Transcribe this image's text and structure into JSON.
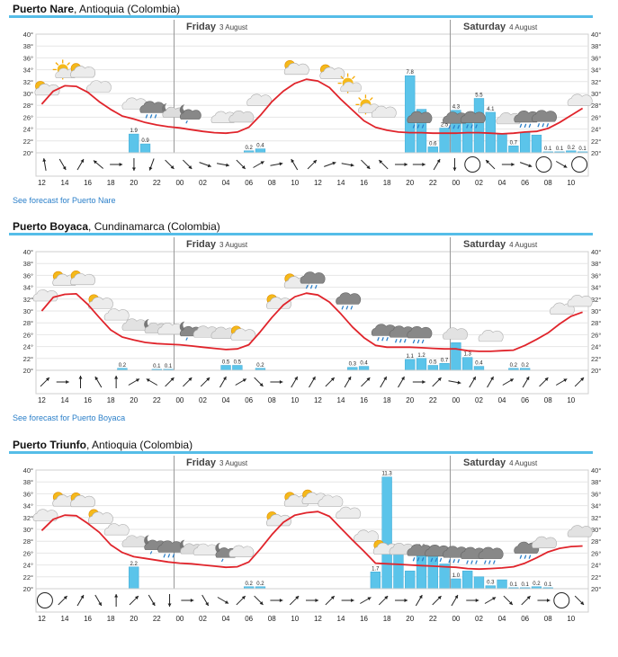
{
  "panels": [
    {
      "title": "Puerto Nare",
      "region": ", Antioquia (Colombia)",
      "day1": "Friday",
      "day1_date": "3 August",
      "day2": "Saturday",
      "day2_date": "4 August",
      "link": "See forecast for Puerto Nare",
      "has_link": true
    },
    {
      "title": "Puerto Boyaca",
      "region": ", Cundinamarca (Colombia)",
      "day1": "Friday",
      "day1_date": "3 August",
      "day2": "Saturday",
      "day2_date": "4 August",
      "link": "See forecast for Puerto Boyaca",
      "has_link": true
    },
    {
      "title": "Puerto Triunfo",
      "region": ", Antioquia (Colombia)",
      "day1": "Friday",
      "day1_date": "3 August",
      "day2": "Saturday",
      "day2_date": "4 August",
      "link": "",
      "has_link": false
    }
  ],
  "colors": {
    "temp_line": "#e0242b",
    "rain_bar": "#5bc4ea",
    "header_rule": "#55bde8"
  },
  "chart_data": [
    {
      "type": "line",
      "x": [
        "12",
        "13",
        "14",
        "15",
        "16",
        "17",
        "18",
        "19",
        "20",
        "21",
        "22",
        "23",
        "00",
        "01",
        "02",
        "03",
        "04",
        "05",
        "06",
        "07",
        "08",
        "09",
        "10",
        "11",
        "12",
        "13",
        "14",
        "15",
        "16",
        "17",
        "18",
        "19",
        "20",
        "21",
        "22",
        "23",
        "00",
        "01",
        "02",
        "03",
        "04",
        "05",
        "06",
        "07",
        "08",
        "09",
        "10",
        "11"
      ],
      "tick_labels": [
        "12",
        "14",
        "16",
        "18",
        "20",
        "22",
        "00",
        "02",
        "04",
        "06",
        "08",
        "10",
        "12",
        "14",
        "16",
        "18",
        "20",
        "22",
        "00",
        "02",
        "04",
        "06",
        "08",
        "10"
      ],
      "ylim": [
        20,
        40
      ],
      "yticks": [
        "20°",
        "22°",
        "24°",
        "26°",
        "28°",
        "30°",
        "32°",
        "34°",
        "36°",
        "38°",
        "40°"
      ],
      "temperature": [
        28.2,
        30.4,
        31.3,
        31.2,
        30.2,
        28.6,
        27.3,
        26.2,
        25.7,
        25.1,
        24.7,
        24.4,
        24.2,
        23.9,
        23.6,
        23.4,
        23.3,
        23.5,
        24.3,
        26.3,
        28.6,
        30.4,
        31.7,
        32.4,
        32.1,
        31,
        29,
        27.2,
        25.4,
        24.3,
        23.8,
        23.5,
        23.4,
        23.4,
        23.3,
        23.3,
        23.3,
        23.4,
        23.4,
        23.3,
        23.2,
        23.3,
        23.5,
        23.6,
        24.1,
        25.1,
        26.3,
        27.5
      ],
      "precip_ylim": [
        0,
        12
      ],
      "precipitation": [
        0,
        0,
        0,
        0,
        0,
        0,
        0,
        0,
        1.9,
        0.9,
        0,
        0,
        0,
        0,
        0,
        0,
        0,
        0,
        0.2,
        0.4,
        0,
        0,
        0,
        0,
        0,
        0,
        0,
        0,
        0,
        0,
        0,
        0,
        7.8,
        4.4,
        0.6,
        2.5,
        4.3,
        3.2,
        5.5,
        4.1,
        1.9,
        0.7,
        2.1,
        1.8,
        0.1,
        0.1,
        0.2,
        0.1
      ],
      "precip_labels": [
        null,
        null,
        null,
        null,
        null,
        null,
        null,
        null,
        "1.9",
        "0.9",
        null,
        null,
        null,
        null,
        null,
        null,
        null,
        null,
        "0.2",
        "0.4",
        null,
        null,
        null,
        null,
        null,
        null,
        null,
        null,
        null,
        null,
        null,
        null,
        "7.8",
        null,
        "0.6",
        "2.5",
        "4.3",
        null,
        "5.5",
        "4.1",
        null,
        "0.7",
        null,
        null,
        "0.1",
        "0.1",
        "0.2",
        "0.1"
      ],
      "icons": [
        "psun",
        "sun",
        "psun",
        "cloud",
        "",
        "cloud",
        "cloudrain",
        "moon",
        "pmoon",
        "",
        "cloud",
        "pcloud",
        "cloud",
        "",
        "psun",
        "",
        "psun",
        "sun",
        "sun",
        "cloud",
        "",
        "cloudrain",
        "",
        "cloudrain",
        "cloudrain",
        "",
        "pcloud",
        "cloudrain",
        "cloudrain",
        "",
        "cloud"
      ],
      "wind": [
        260,
        60,
        300,
        220,
        0,
        90,
        110,
        45,
        45,
        20,
        10,
        45,
        330,
        350,
        240,
        315,
        340,
        10,
        45,
        225,
        0,
        0,
        300,
        90,
        0,
        225,
        0,
        20,
        0,
        30,
        0
      ],
      "wind_calm": [
        false,
        false,
        false,
        false,
        false,
        false,
        false,
        false,
        false,
        false,
        false,
        false,
        false,
        false,
        false,
        false,
        false,
        false,
        false,
        false,
        false,
        false,
        false,
        false,
        true,
        false,
        false,
        false,
        true,
        false,
        true
      ]
    },
    {
      "type": "line",
      "x": [
        "12",
        "13",
        "14",
        "15",
        "16",
        "17",
        "18",
        "19",
        "20",
        "21",
        "22",
        "23",
        "00",
        "01",
        "02",
        "03",
        "04",
        "05",
        "06",
        "07",
        "08",
        "09",
        "10",
        "11",
        "12",
        "13",
        "14",
        "15",
        "16",
        "17",
        "18",
        "19",
        "20",
        "21",
        "22",
        "23",
        "00",
        "01",
        "02",
        "03",
        "04",
        "05",
        "06",
        "07",
        "08",
        "09",
        "10",
        "11"
      ],
      "tick_labels": [
        "12",
        "14",
        "16",
        "18",
        "20",
        "22",
        "00",
        "02",
        "04",
        "06",
        "08",
        "10",
        "12",
        "14",
        "16",
        "18",
        "20",
        "22",
        "00",
        "02",
        "04",
        "06",
        "08",
        "10"
      ],
      "ylim": [
        20,
        40
      ],
      "yticks": [
        "20°",
        "22°",
        "24°",
        "26°",
        "28°",
        "30°",
        "32°",
        "34°",
        "36°",
        "38°",
        "40°"
      ],
      "temperature": [
        30,
        32.3,
        32.8,
        32.9,
        31.1,
        28.9,
        26.8,
        25.6,
        25.1,
        24.7,
        24.5,
        24.4,
        24.3,
        24.1,
        23.9,
        23.7,
        23.5,
        23.6,
        24.3,
        26.5,
        28.9,
        31,
        32.4,
        33,
        32.7,
        31.5,
        29.5,
        27.3,
        25.5,
        24.2,
        23.9,
        23.9,
        23.9,
        23.8,
        23.7,
        23.6,
        23.6,
        23.3,
        23.2,
        23.2,
        23.3,
        23.4,
        24.2,
        25.2,
        26.3,
        27.8,
        29.1,
        29.8
      ],
      "precip_ylim": [
        0,
        12
      ],
      "precipitation": [
        0,
        0,
        0,
        0,
        0,
        0,
        0,
        0.2,
        0,
        0,
        0.1,
        0.1,
        0,
        0,
        0,
        0,
        0.5,
        0.5,
        0,
        0.2,
        0,
        0,
        0,
        0,
        0,
        0,
        0,
        0.3,
        0.4,
        0,
        0,
        0,
        1.1,
        1.2,
        0.5,
        0.7,
        2.8,
        1.3,
        0.4,
        0,
        0,
        0.2,
        0.2,
        0,
        0,
        0,
        0,
        0
      ],
      "precip_labels": [
        null,
        null,
        null,
        null,
        null,
        null,
        null,
        "0.2",
        null,
        null,
        "0.1",
        "0.1",
        null,
        null,
        null,
        null,
        "0.5",
        "0.5",
        null,
        "0.2",
        null,
        null,
        null,
        null,
        null,
        null,
        null,
        "0.3",
        "0.4",
        null,
        null,
        null,
        "1.1",
        "1.2",
        "0.5",
        "0.7",
        null,
        "1.3",
        "0.4",
        null,
        null,
        "0.2",
        "0.2",
        null,
        null,
        null,
        null,
        null
      ],
      "icons": [
        "cloud",
        "psun",
        "psun",
        "psun",
        "cloud",
        "pcloud",
        "moon",
        "cloud",
        "pmoon",
        "pcloud",
        "pcloud",
        "psun",
        "",
        "psun",
        "psun",
        "cloudrain",
        "",
        "cloudrain",
        "",
        "cloudrain",
        "cloudrain",
        "cloudrain",
        "",
        "pcloud",
        "",
        "cloud",
        "",
        "",
        "",
        "cloud",
        "cloud"
      ],
      "wind": [
        315,
        0,
        270,
        240,
        270,
        330,
        210,
        315,
        315,
        315,
        300,
        330,
        45,
        0,
        300,
        300,
        315,
        300,
        315,
        300,
        300,
        0,
        315,
        10,
        300,
        300,
        330,
        300,
        315,
        330,
        315
      ],
      "wind_calm": [
        false,
        false,
        false,
        false,
        false,
        false,
        false,
        false,
        false,
        false,
        false,
        false,
        false,
        false,
        false,
        false,
        false,
        false,
        false,
        false,
        false,
        false,
        false,
        false,
        false,
        false,
        false,
        false,
        false,
        false,
        false
      ]
    },
    {
      "type": "line",
      "x": [
        "12",
        "13",
        "14",
        "15",
        "16",
        "17",
        "18",
        "19",
        "20",
        "21",
        "22",
        "23",
        "00",
        "01",
        "02",
        "03",
        "04",
        "05",
        "06",
        "07",
        "08",
        "09",
        "10",
        "11",
        "12",
        "13",
        "14",
        "15",
        "16",
        "17",
        "18",
        "19",
        "20",
        "21",
        "22",
        "23",
        "00",
        "01",
        "02",
        "03",
        "04",
        "05",
        "06",
        "07",
        "08",
        "09",
        "10",
        "11"
      ],
      "tick_labels": [
        "12",
        "14",
        "16",
        "18",
        "20",
        "22",
        "00",
        "02",
        "04",
        "06",
        "08",
        "10",
        "12",
        "14",
        "16",
        "18",
        "20",
        "22",
        "00",
        "02",
        "04",
        "06",
        "08",
        "10"
      ],
      "ylim": [
        20,
        40
      ],
      "yticks": [
        "20°",
        "22°",
        "24°",
        "26°",
        "28°",
        "30°",
        "32°",
        "34°",
        "36°",
        "38°",
        "40°"
      ],
      "temperature": [
        29.8,
        31.7,
        32.4,
        32.3,
        31,
        29.5,
        27.4,
        26.1,
        25.4,
        25.1,
        24.8,
        24.5,
        24.3,
        24.2,
        24,
        23.8,
        23.6,
        23.7,
        24.5,
        26.7,
        29.1,
        31.2,
        32.4,
        32.8,
        33,
        32.2,
        30.2,
        28.2,
        26.3,
        24.3,
        24.2,
        24.1,
        24,
        23.9,
        23.8,
        23.7,
        23.6,
        23.4,
        23.3,
        23.4,
        23.5,
        23.7,
        24.3,
        25.2,
        26.2,
        26.8,
        27.1,
        27.2
      ],
      "precip_ylim": [
        0,
        12
      ],
      "precipitation": [
        0,
        0,
        0,
        0,
        0,
        0,
        0,
        0,
        2.2,
        0,
        0,
        0,
        0,
        0,
        0,
        0,
        0,
        0,
        0.2,
        0.2,
        0,
        0,
        0,
        0,
        0,
        0,
        0,
        0,
        0,
        1.7,
        11.3,
        4.1,
        1.8,
        3.9,
        3.7,
        2.5,
        1.0,
        1.8,
        1.2,
        0.3,
        0.9,
        0.1,
        0.1,
        0.2,
        0.1,
        0,
        0,
        0
      ],
      "precip_labels": [
        null,
        null,
        null,
        null,
        null,
        null,
        null,
        null,
        "2.2",
        null,
        null,
        null,
        null,
        null,
        null,
        null,
        null,
        null,
        "0.2",
        "0.2",
        null,
        null,
        null,
        null,
        null,
        null,
        null,
        null,
        null,
        "1.7",
        "11.3",
        null,
        null,
        "3.9",
        "3.7",
        null,
        "1.0",
        null,
        null,
        "0.3",
        null,
        "0.1",
        "0.1",
        "0.2",
        "0.1",
        null,
        null,
        null
      ],
      "icons": [
        "cloud",
        "psun",
        "psun",
        "psun",
        "cloud",
        "pcloud",
        "pmoon",
        "cloudrain",
        "moon",
        "cloud",
        "pmoon",
        "cloud",
        "",
        "psun",
        "psun",
        "psun",
        "cloud",
        "cloud",
        "cloud",
        "psun",
        "pcloud",
        "cloudrain",
        "cloudrain",
        "cloudrain",
        "cloudrain",
        "cloudrain",
        "",
        "cloudrain",
        "pcloud",
        "",
        "pcloud"
      ],
      "wind": [
        0,
        315,
        300,
        60,
        270,
        315,
        60,
        90,
        0,
        60,
        30,
        315,
        45,
        0,
        315,
        0,
        315,
        0,
        330,
        315,
        0,
        300,
        315,
        300,
        0,
        330,
        45,
        315,
        0,
        330,
        45
      ],
      "wind_calm": [
        true,
        false,
        false,
        false,
        false,
        false,
        false,
        false,
        false,
        false,
        false,
        false,
        false,
        false,
        false,
        false,
        false,
        false,
        false,
        false,
        false,
        false,
        false,
        false,
        false,
        false,
        false,
        false,
        false,
        true,
        false
      ]
    }
  ]
}
